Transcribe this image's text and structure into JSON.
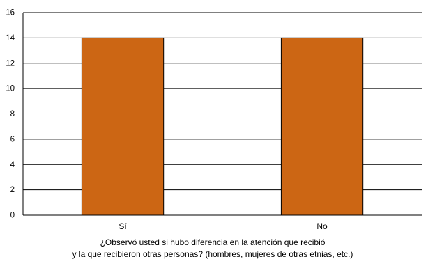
{
  "chart_data": {
    "type": "bar",
    "categories": [
      "Sí",
      "No"
    ],
    "values": [
      14,
      14
    ],
    "title": "",
    "xlabel": "¿Observó usted si hubo diferencia en la atención que recibió\ny la que recibieron otras personas? (hombres, mujeres de otras etnias, etc.)",
    "xlabel_lines": [
      "¿Observó usted si hubo diferencia en la atención que recibió",
      "y la que recibieron otras personas? (hombres, mujeres de otras etnias, etc.)"
    ],
    "ylabel": "",
    "ylim": [
      0,
      16
    ],
    "yticks": [
      0,
      2,
      4,
      6,
      8,
      10,
      12,
      14,
      16
    ],
    "grid": true,
    "legend": "none",
    "bar_color": "#CC6614",
    "bar_stroke": "#000000"
  }
}
